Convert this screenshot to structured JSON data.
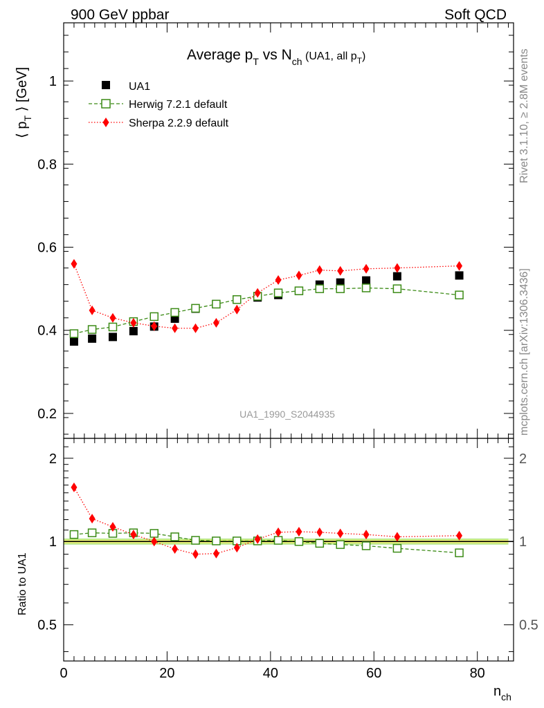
{
  "header": {
    "energy_label": "900 GeV ppbar",
    "category_label": "Soft QCD"
  },
  "side_text": {
    "rivet": "Rivet 3.1.10, ≥ 2.8M events",
    "mcplots": "mcplots.cern.ch [arXiv:1306.3436]"
  },
  "chart_data": {
    "type": "scatter",
    "title_parts": {
      "a": "Average p",
      "a_sub": "T",
      "b": " vs N",
      "b_sub": "ch",
      "c": " (UA1, all p",
      "c_sub": "T",
      "d": ")"
    },
    "ylabel_parts": {
      "pre": "⟨ p",
      "sub": "T",
      "post": " ⟩ [GeV]"
    },
    "xlabel_parts": {
      "main": "n",
      "sub": "ch"
    },
    "ratio_ylabel": "Ratio to UA1",
    "watermark": "UA1_1990_S2044935",
    "xlim": [
      0,
      87
    ],
    "ylim": [
      0.14,
      1.14
    ],
    "ratio_ylim": [
      0.37,
      2.36
    ],
    "x_ticks": [
      0,
      20,
      40,
      60,
      80
    ],
    "x_tick_labels": [
      "0",
      "20",
      "40",
      "60",
      "80"
    ],
    "y_ticks": [
      0.2,
      0.4,
      0.6,
      0.8,
      1.0
    ],
    "y_tick_labels": [
      "0.2",
      "0.4",
      "0.6",
      "0.8",
      "1"
    ],
    "ratio_ticks": [
      0.5,
      1,
      2
    ],
    "ratio_tick_labels": [
      "0.5",
      "1",
      "2"
    ],
    "series": [
      {
        "name": "UA1",
        "style": "data",
        "color": "#000000",
        "marker": "square",
        "x": [
          2,
          5.5,
          9.5,
          13.5,
          17.5,
          21.5,
          25.5,
          29.5,
          33.5,
          37.5,
          41.5,
          45.5,
          49.5,
          53.5,
          58.5,
          64.5,
          76.5
        ],
        "values": [
          0.373,
          0.38,
          0.384,
          0.398,
          0.409,
          0.428,
          0.452,
          0.463,
          0.474,
          0.479,
          0.485,
          0.495,
          0.51,
          0.515,
          0.52,
          0.53,
          0.532
        ]
      },
      {
        "name": "Herwig 7.2.1 default",
        "style": "dashed",
        "color": "#3a8a14",
        "marker": "open-square",
        "x": [
          2,
          5.5,
          9.5,
          13.5,
          17.5,
          21.5,
          25.5,
          29.5,
          33.5,
          37.5,
          41.5,
          45.5,
          49.5,
          53.5,
          58.5,
          64.5,
          76.5
        ],
        "values": [
          0.392,
          0.402,
          0.408,
          0.421,
          0.433,
          0.443,
          0.453,
          0.463,
          0.474,
          0.482,
          0.49,
          0.495,
          0.5,
          0.5,
          0.502,
          0.5,
          0.485
        ],
        "ratio": [
          1.06,
          1.075,
          1.07,
          1.075,
          1.07,
          1.04,
          1.01,
          1.005,
          1.005,
          1.005,
          1.01,
          1.0,
          0.985,
          0.975,
          0.965,
          0.945,
          0.91
        ]
      },
      {
        "name": "Sherpa 2.2.9 default",
        "style": "dotted",
        "color": "#ff0000",
        "marker": "diamond",
        "x": [
          2,
          5.5,
          9.5,
          13.5,
          17.5,
          21.5,
          25.5,
          29.5,
          33.5,
          37.5,
          41.5,
          45.5,
          49.5,
          53.5,
          58.5,
          64.5,
          76.5
        ],
        "values": [
          0.56,
          0.448,
          0.43,
          0.418,
          0.41,
          0.405,
          0.405,
          0.418,
          0.45,
          0.49,
          0.521,
          0.532,
          0.545,
          0.543,
          0.548,
          0.55,
          0.555
        ],
        "ratio": [
          1.57,
          1.21,
          1.13,
          1.06,
          1.0,
          0.94,
          0.9,
          0.905,
          0.95,
          1.02,
          1.08,
          1.085,
          1.08,
          1.07,
          1.06,
          1.04,
          1.05
        ]
      }
    ],
    "ratio_band": {
      "fill": "#f0f579",
      "edge": "#a8e17a"
    }
  }
}
